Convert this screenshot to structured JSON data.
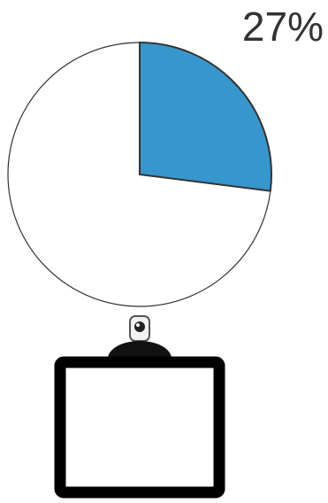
{
  "chart_data": {
    "type": "pie",
    "values": [
      27
    ],
    "value_labels": [
      "27%"
    ],
    "color": "#3796cc"
  }
}
